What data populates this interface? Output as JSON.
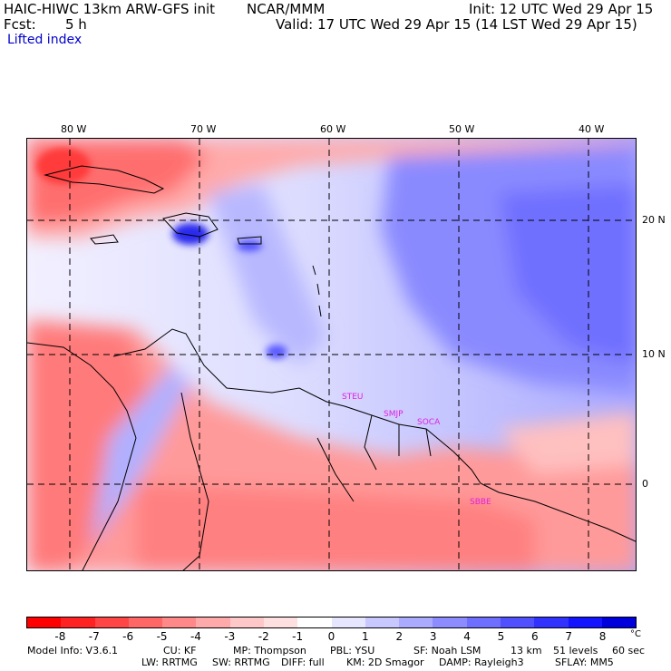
{
  "header": {
    "title": "HAIC-HIWC 13km ARW-GFS init",
    "org": "NCAR/MMM",
    "init": "Init: 12 UTC Wed 29 Apr 15",
    "fcst_label": "Fcst:",
    "fcst_value": "5 h",
    "valid": "Valid: 17 UTC Wed 29 Apr 15 (14 LST Wed 29 Apr 15)",
    "field": "Lifted index"
  },
  "map": {
    "lon_labels": [
      "80 W",
      "70 W",
      "60 W",
      "50 W",
      "40 W"
    ],
    "lat_labels": [
      "20 N",
      "10 N",
      "0"
    ],
    "stations": [
      "STEU",
      "SMJP",
      "SOCA",
      "SBBE"
    ]
  },
  "colorbar": {
    "labels": [
      "-8",
      "-7",
      "-6",
      "-5",
      "-4",
      "-3",
      "-2",
      "-1",
      "0",
      "1",
      "2",
      "3",
      "4",
      "5",
      "6",
      "7",
      "8"
    ],
    "unit": "°C",
    "colors": [
      "#ff0000",
      "#ff2222",
      "#ff4545",
      "#ff6666",
      "#ff8888",
      "#ffaaaa",
      "#ffc8c8",
      "#ffe0e0",
      "#ffffff",
      "#e6e6ff",
      "#c8c8ff",
      "#aaaaff",
      "#8c8cff",
      "#6e6eff",
      "#5050ff",
      "#3232ff",
      "#1414ff",
      "#0000dd"
    ]
  },
  "footer": {
    "line1": [
      "Model Info: V3.6.1",
      "CU: KF",
      "MP: Thompson",
      "PBL: YSU",
      "SF: Noah LSM",
      "13 km",
      "51 levels",
      "60 sec"
    ],
    "line2": [
      "LW: RRTMG",
      "SW: RRTMG",
      "DIFF: full",
      "KM: 2D Smagor",
      "DAMP: Rayleigh3",
      "SFLAY: MM5"
    ]
  }
}
